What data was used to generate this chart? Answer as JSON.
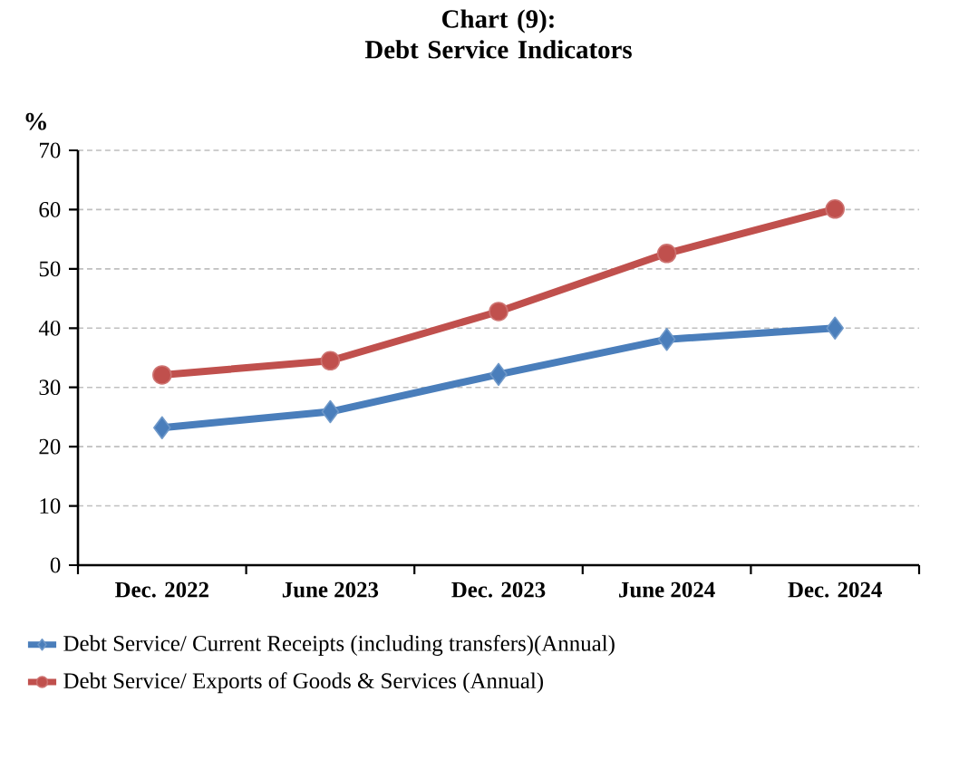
{
  "chart_data": {
    "type": "line",
    "title": "Chart (9):\nDebt Service Indicators",
    "ylabel": "%",
    "categories": [
      "Dec. 2022",
      "June 2023",
      "Dec. 2023",
      "June 2024",
      "Dec. 2024"
    ],
    "series": [
      {
        "name": "Debt Service/ Current Receipts (including transfers)(Annual)",
        "color": "#4a7ebb",
        "marker": "diamond",
        "values": [
          23.2,
          25.9,
          32.2,
          38.1,
          40.0
        ]
      },
      {
        "name": "Debt Service/ Exports of Goods & Services (Annual)",
        "color": "#c0504d",
        "marker": "circle",
        "values": [
          32.1,
          34.5,
          42.8,
          52.6,
          60.1
        ]
      }
    ],
    "ylim": [
      0,
      70
    ],
    "yticks": [
      0,
      10,
      20,
      30,
      40,
      50,
      60,
      70
    ],
    "grid": "y",
    "legend": "bottom",
    "line_style": "solid"
  }
}
